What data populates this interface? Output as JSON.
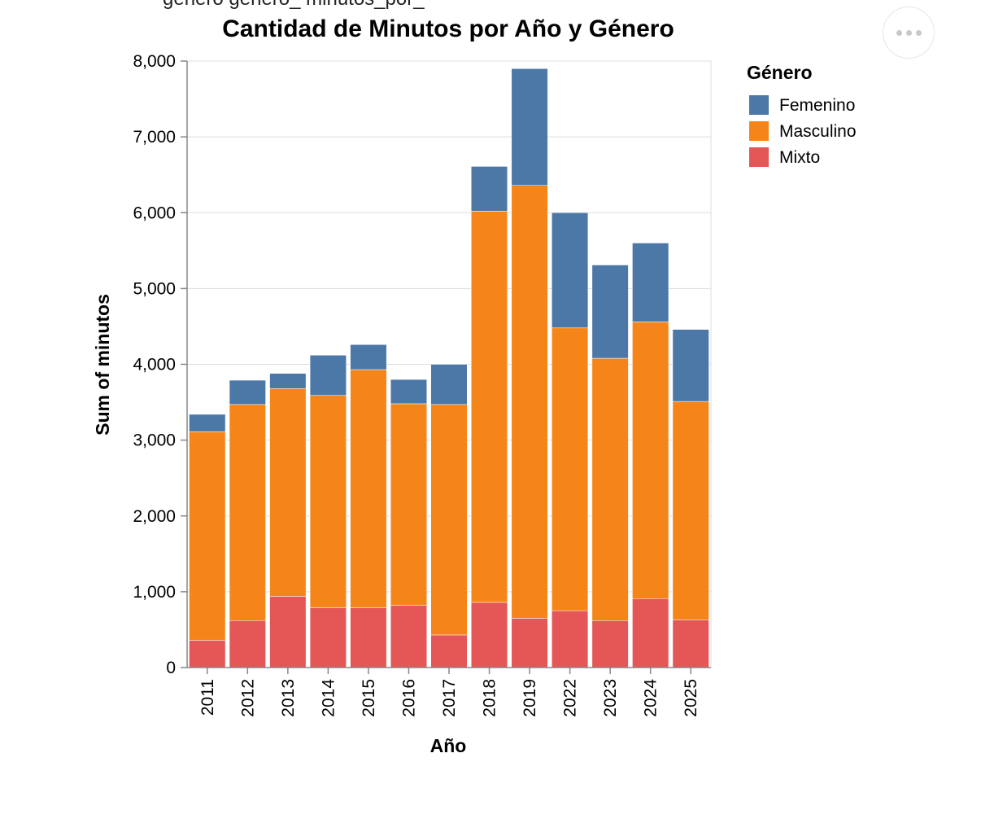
{
  "page": {
    "clipped_top_text": "género                                   género_  minutos_por_"
  },
  "menu": {
    "icon": "ellipsis-icon"
  },
  "chart_data": {
    "type": "bar",
    "stacked": true,
    "title": "Cantidad de Minutos por Año y Género",
    "xlabel": "Año",
    "ylabel": "Sum of minutos",
    "categories": [
      "2011",
      "2012",
      "2013",
      "2014",
      "2015",
      "2016",
      "2017",
      "2018",
      "2019",
      "2022",
      "2023",
      "2024",
      "2025"
    ],
    "ylim": [
      0,
      8000
    ],
    "yticks": [
      0,
      1000,
      2000,
      3000,
      4000,
      5000,
      6000,
      7000,
      8000
    ],
    "ytick_labels": [
      "0",
      "1,000",
      "2,000",
      "3,000",
      "4,000",
      "5,000",
      "6,000",
      "7,000",
      "8,000"
    ],
    "grid": true,
    "legend": {
      "title": "Género",
      "placement": "right"
    },
    "series": [
      {
        "name": "Mixto",
        "color": "#e45756",
        "values": [
          360,
          620,
          940,
          790,
          790,
          820,
          430,
          860,
          650,
          750,
          620,
          910,
          630
        ]
      },
      {
        "name": "Masculino",
        "color": "#f58518",
        "values": [
          2750,
          2850,
          2740,
          2800,
          3140,
          2660,
          3040,
          5160,
          5710,
          3730,
          3460,
          3650,
          2880
        ]
      },
      {
        "name": "Femenino",
        "color": "#4c78a8",
        "values": [
          230,
          320,
          200,
          530,
          330,
          320,
          530,
          590,
          1540,
          1520,
          1230,
          1040,
          950
        ]
      }
    ],
    "legend_order": [
      "Femenino",
      "Masculino",
      "Mixto"
    ]
  }
}
